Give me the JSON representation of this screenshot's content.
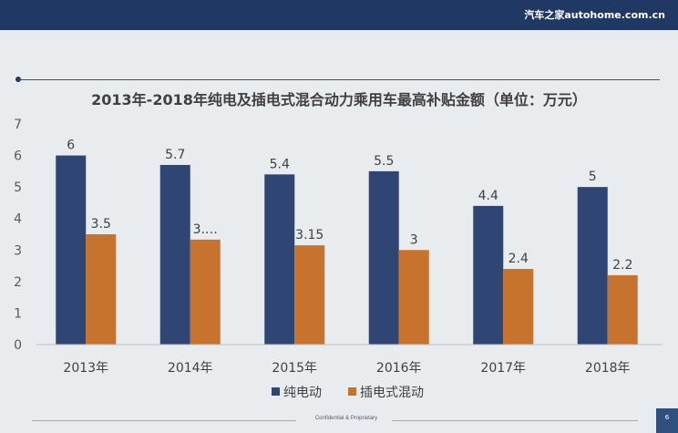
{
  "header": {
    "brand": "汽车之家autohome.com.cn"
  },
  "footer": {
    "confidential": "Confidential & Proprietary",
    "page_number": "6"
  },
  "colors": {
    "series1": "#2f4675",
    "series2": "#c8732d",
    "topbar": "#203864"
  },
  "chart_data": {
    "type": "bar",
    "title": "2013年-2018年纯电及插电式混合动力乘用车最高补贴金额（单位：万元）",
    "categories": [
      "2013年",
      "2014年",
      "2015年",
      "2016年",
      "2017年",
      "2018年"
    ],
    "series": [
      {
        "name": "纯电动",
        "values": [
          6,
          5.7,
          5.4,
          5.5,
          4.4,
          5
        ],
        "labels": [
          "6",
          "5.7",
          "5.4",
          "5.5",
          "4.4",
          "5"
        ]
      },
      {
        "name": "插电式混动",
        "values": [
          3.5,
          3.33,
          3.15,
          3,
          2.4,
          2.2
        ],
        "labels": [
          "3.5",
          "3.…",
          "3.15",
          "3",
          "2.4",
          "2.2"
        ]
      }
    ],
    "ylim": [
      0,
      7
    ],
    "yticks": [
      0,
      1,
      2,
      3,
      4,
      5,
      6,
      7
    ],
    "legend_position": "bottom-center",
    "grid": false
  }
}
